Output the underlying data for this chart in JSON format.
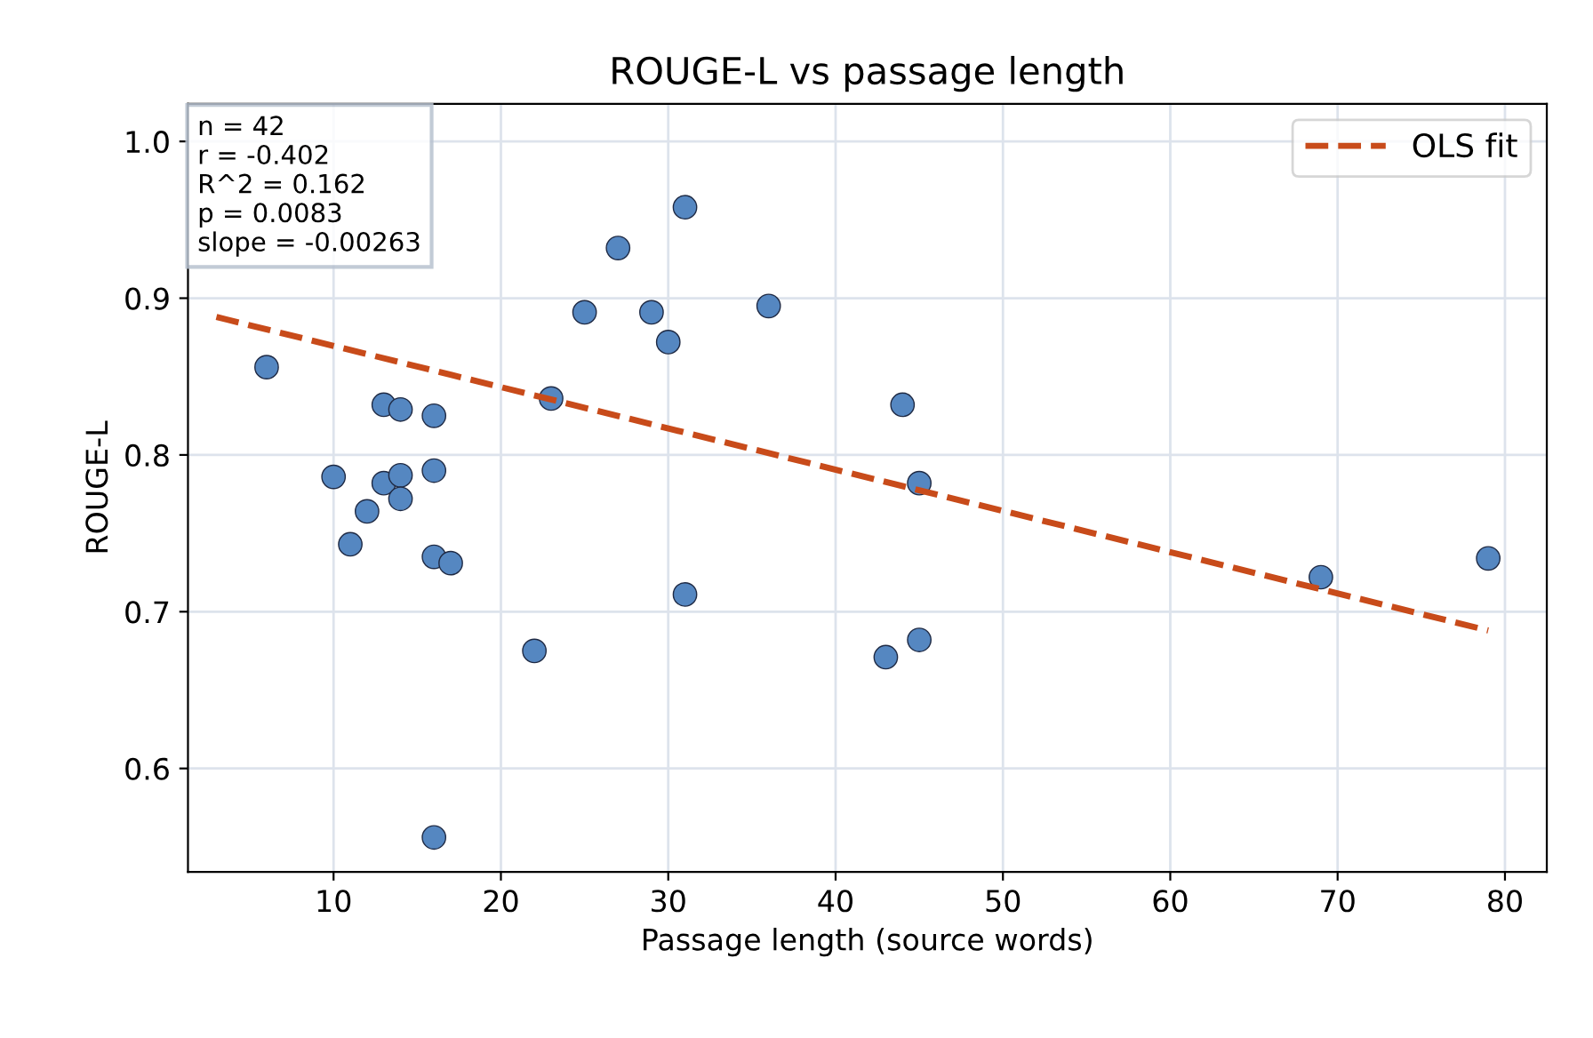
{
  "chart_data": {
    "type": "scatter",
    "title": "ROUGE-L vs passage length",
    "xlabel": "Passage length (source words)",
    "ylabel": "ROUGE-L",
    "xlim": [
      1.3,
      82.5
    ],
    "ylim": [
      0.534,
      1.024
    ],
    "xticks": [
      10,
      20,
      30,
      40,
      50,
      60,
      70,
      80
    ],
    "yticks": [
      0.6,
      0.7,
      0.8,
      0.9,
      {
        "value": 1.0,
        "label": "1.0"
      }
    ],
    "grid": true,
    "legend": "top right",
    "annotations": [
      "n = 42\nr = -0.402\nR^2 = 0.162\np = 0.0083\nslope = -0.00263"
    ],
    "series": [
      {
        "color": "#5587c1",
        "marker": "circle",
        "x": [
          6,
          13,
          14,
          16,
          10,
          13,
          14,
          14,
          16,
          12,
          11,
          16,
          17,
          16,
          22,
          23,
          31,
          25,
          27,
          29,
          30,
          31,
          36,
          44,
          45,
          43,
          45,
          69,
          79
        ],
        "values": [
          0.856,
          0.832,
          0.829,
          0.825,
          0.786,
          0.782,
          0.787,
          0.772,
          0.79,
          0.764,
          0.743,
          0.735,
          0.731,
          0.556,
          0.675,
          0.836,
          0.711,
          0.891,
          0.932,
          0.891,
          0.872,
          0.958,
          0.895,
          0.832,
          0.782,
          0.671,
          0.682,
          0.722,
          0.734
        ]
      },
      {
        "type": "line",
        "name": "OLS fit",
        "color": "#c84b1a",
        "line_style": "dashed",
        "x": [
          3,
          79
        ],
        "values": [
          0.888,
          0.688
        ]
      }
    ]
  }
}
